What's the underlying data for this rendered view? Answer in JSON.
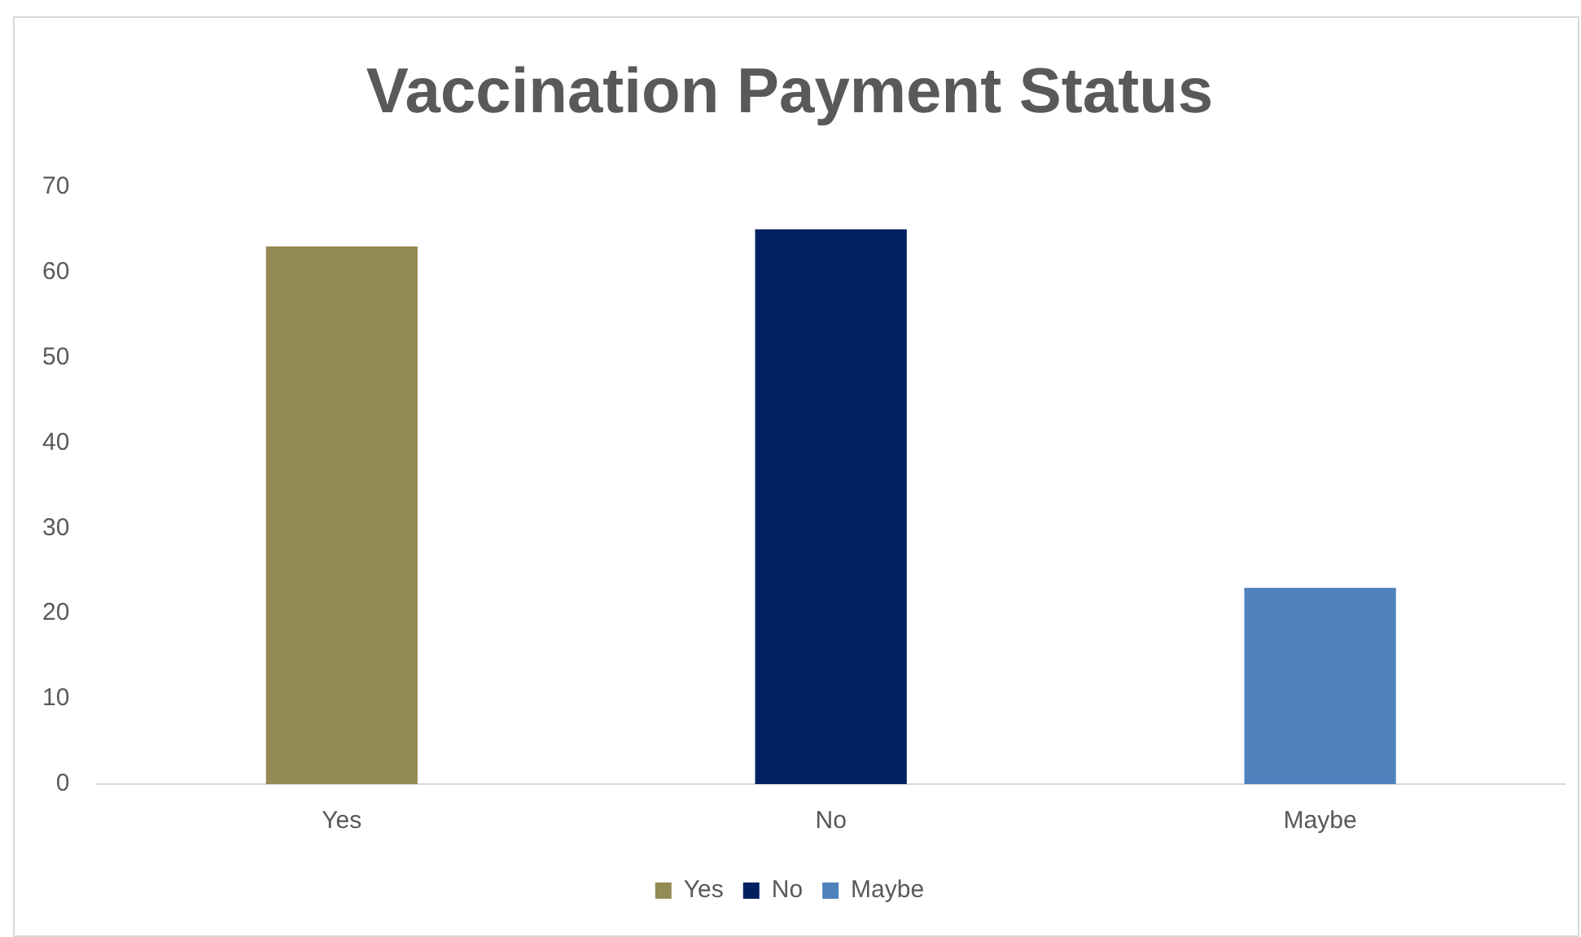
{
  "chart_data": {
    "type": "bar",
    "title": "Vaccination Payment Status",
    "categories": [
      "Yes",
      "No",
      "Maybe"
    ],
    "series": [
      {
        "name": "Yes",
        "color": "#948a54",
        "values": [
          63,
          null,
          null
        ]
      },
      {
        "name": "No",
        "color": "#002060",
        "values": [
          null,
          65,
          null
        ]
      },
      {
        "name": "Maybe",
        "color": "#4f81bd",
        "values": [
          null,
          null,
          23
        ]
      }
    ],
    "ylim": [
      0,
      70
    ],
    "yticks": [
      0,
      10,
      20,
      30,
      40,
      50,
      60,
      70
    ],
    "grid": false,
    "legend": "bottom"
  }
}
